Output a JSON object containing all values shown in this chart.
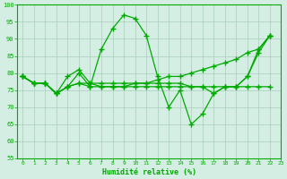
{
  "xlabel": "Humidité relative (%)",
  "background_color": "#d4eee4",
  "line_color": "#00aa00",
  "grid_color": "#aaccbb",
  "ylim": [
    55,
    100
  ],
  "xlim": [
    -0.5,
    23
  ],
  "yticks": [
    55,
    60,
    65,
    70,
    75,
    80,
    85,
    90,
    95,
    100
  ],
  "xticks": [
    0,
    1,
    2,
    3,
    4,
    5,
    6,
    7,
    8,
    9,
    10,
    11,
    12,
    13,
    14,
    15,
    16,
    17,
    18,
    19,
    20,
    21,
    22,
    23
  ],
  "line1_x": [
    0,
    1,
    2,
    3,
    4,
    5,
    6,
    7,
    8,
    9,
    10,
    11,
    12,
    13,
    14,
    15,
    16,
    17,
    18,
    19,
    20,
    21,
    22
  ],
  "line1_y": [
    79,
    77,
    77,
    74,
    76,
    80,
    76,
    87,
    93,
    97,
    96,
    91,
    79,
    70,
    75,
    65,
    68,
    74,
    76,
    76,
    79,
    87,
    91
  ],
  "line2_x": [
    0,
    1,
    2,
    3,
    4,
    5,
    6,
    7,
    8,
    9,
    10,
    11,
    12,
    13,
    14,
    15,
    16,
    17,
    18,
    19,
    20,
    21,
    22
  ],
  "line2_y": [
    79,
    77,
    77,
    74,
    79,
    81,
    77,
    77,
    77,
    77,
    77,
    77,
    78,
    79,
    79,
    80,
    81,
    82,
    83,
    84,
    86,
    87,
    91
  ],
  "line3_x": [
    0,
    1,
    2,
    3,
    4,
    5,
    6,
    7,
    8,
    9,
    10,
    11,
    12,
    13,
    14,
    15,
    16,
    17,
    18,
    19,
    20,
    21,
    22
  ],
  "line3_y": [
    79,
    77,
    77,
    74,
    76,
    77,
    77,
    76,
    76,
    76,
    76,
    76,
    76,
    76,
    76,
    76,
    76,
    76,
    76,
    76,
    76,
    76,
    76
  ],
  "line4_x": [
    0,
    1,
    2,
    3,
    4,
    5,
    6,
    7,
    8,
    9,
    10,
    11,
    12,
    13,
    14,
    15,
    16,
    17,
    18,
    19,
    20,
    21,
    22
  ],
  "line4_y": [
    79,
    77,
    77,
    74,
    76,
    77,
    76,
    76,
    76,
    76,
    77,
    77,
    77,
    77,
    77,
    76,
    76,
    74,
    76,
    76,
    79,
    86,
    91
  ]
}
